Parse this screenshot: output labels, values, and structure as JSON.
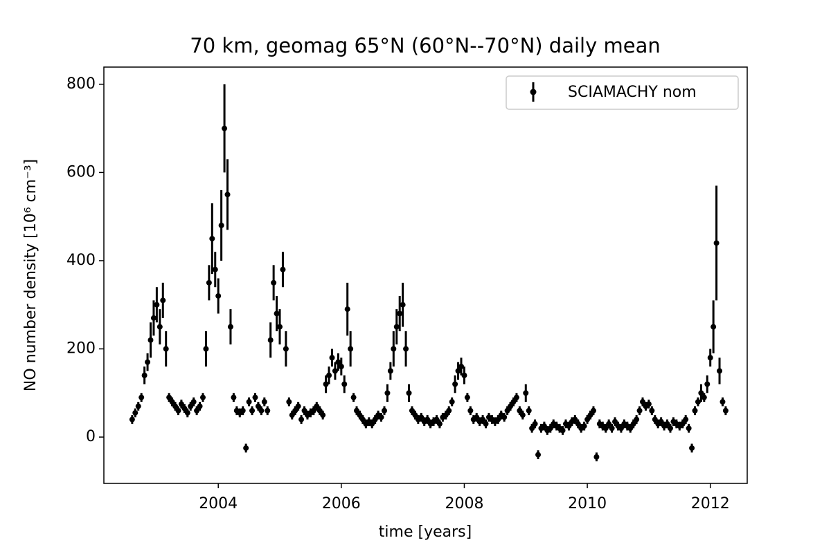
{
  "chart_data": {
    "type": "scatter",
    "title": "70 km, geomag 65°N (60°N--70°N) daily mean",
    "xlabel": "time [years]",
    "ylabel": "NO number density [10⁶ cm⁻³]",
    "xlim": [
      2002.14,
      2012.6
    ],
    "ylim": [
      -105,
      839
    ],
    "xticks": [
      2004,
      2006,
      2008,
      2010,
      2012
    ],
    "yticks": [
      0,
      200,
      400,
      600,
      800
    ],
    "legend": "upper right",
    "x": [
      2002.6,
      2002.65,
      2002.7,
      2002.75,
      2002.8,
      2002.85,
      2002.9,
      2002.95,
      2003,
      2003.05,
      2003.1,
      2003.15,
      2003.2,
      2003.25,
      2003.3,
      2003.35,
      2003.4,
      2003.45,
      2003.5,
      2003.55,
      2003.6,
      2003.65,
      2003.7,
      2003.75,
      2003.8,
      2003.85,
      2003.9,
      2003.95,
      2004,
      2004.05,
      2004.1,
      2004.15,
      2004.2,
      2004.25,
      2004.3,
      2004.35,
      2004.4,
      2004.45,
      2004.5,
      2004.55,
      2004.6,
      2004.65,
      2004.7,
      2004.75,
      2004.8,
      2004.85,
      2004.9,
      2004.95,
      2005,
      2005.05,
      2005.1,
      2005.15,
      2005.2,
      2005.25,
      2005.3,
      2005.35,
      2005.4,
      2005.45,
      2005.5,
      2005.55,
      2005.6,
      2005.65,
      2005.7,
      2005.75,
      2005.8,
      2005.85,
      2005.9,
      2005.95,
      2006,
      2006.05,
      2006.1,
      2006.15,
      2006.2,
      2006.25,
      2006.3,
      2006.35,
      2006.4,
      2006.45,
      2006.5,
      2006.55,
      2006.6,
      2006.65,
      2006.7,
      2006.75,
      2006.8,
      2006.85,
      2006.9,
      2006.95,
      2007,
      2007.05,
      2007.1,
      2007.15,
      2007.2,
      2007.25,
      2007.3,
      2007.35,
      2007.4,
      2007.45,
      2007.5,
      2007.55,
      2007.6,
      2007.65,
      2007.7,
      2007.75,
      2007.8,
      2007.85,
      2007.9,
      2007.95,
      2008,
      2008.05,
      2008.1,
      2008.15,
      2008.2,
      2008.25,
      2008.3,
      2008.35,
      2008.4,
      2008.45,
      2008.5,
      2008.55,
      2008.6,
      2008.65,
      2008.7,
      2008.75,
      2008.8,
      2008.85,
      2008.9,
      2008.95,
      2009,
      2009.05,
      2009.1,
      2009.15,
      2009.2,
      2009.25,
      2009.3,
      2009.35,
      2009.4,
      2009.45,
      2009.5,
      2009.55,
      2009.6,
      2009.65,
      2009.7,
      2009.75,
      2009.8,
      2009.85,
      2009.9,
      2009.95,
      2010,
      2010.05,
      2010.1,
      2010.15,
      2010.2,
      2010.25,
      2010.3,
      2010.35,
      2010.4,
      2010.45,
      2010.5,
      2010.55,
      2010.6,
      2010.65,
      2010.7,
      2010.75,
      2010.8,
      2010.85,
      2010.9,
      2010.95,
      2011,
      2011.05,
      2011.1,
      2011.15,
      2011.2,
      2011.25,
      2011.3,
      2011.35,
      2011.4,
      2011.45,
      2011.5,
      2011.55,
      2011.6,
      2011.65,
      2011.7,
      2011.75,
      2011.8,
      2011.85,
      2011.9,
      2011.95,
      2012,
      2012.05,
      2012.1,
      2012.15,
      2012.2,
      2012.25
    ],
    "series": [
      {
        "name": "SCIAMACHY nom",
        "color": "#000000",
        "values": [
          40,
          55,
          70,
          90,
          140,
          170,
          220,
          270,
          300,
          250,
          310,
          200,
          90,
          80,
          70,
          60,
          75,
          65,
          55,
          70,
          80,
          60,
          70,
          90,
          200,
          350,
          450,
          380,
          320,
          480,
          700,
          550,
          250,
          90,
          60,
          55,
          60,
          -25,
          80,
          60,
          90,
          70,
          60,
          80,
          60,
          220,
          350,
          280,
          250,
          380,
          200,
          80,
          50,
          60,
          70,
          40,
          60,
          50,
          55,
          60,
          70,
          60,
          50,
          120,
          140,
          180,
          150,
          170,
          160,
          120,
          290,
          200,
          90,
          60,
          50,
          40,
          30,
          35,
          30,
          40,
          50,
          45,
          60,
          100,
          150,
          200,
          250,
          280,
          300,
          200,
          100,
          60,
          50,
          40,
          45,
          35,
          40,
          30,
          35,
          40,
          30,
          45,
          50,
          60,
          80,
          120,
          150,
          160,
          140,
          90,
          60,
          40,
          45,
          35,
          40,
          30,
          45,
          40,
          35,
          40,
          50,
          45,
          60,
          70,
          80,
          90,
          60,
          50,
          100,
          60,
          20,
          30,
          -40,
          20,
          25,
          15,
          20,
          30,
          25,
          20,
          15,
          30,
          25,
          35,
          40,
          30,
          20,
          25,
          40,
          50,
          60,
          -45,
          30,
          25,
          20,
          30,
          20,
          35,
          25,
          20,
          30,
          25,
          20,
          30,
          40,
          60,
          80,
          70,
          75,
          60,
          40,
          30,
          35,
          25,
          30,
          20,
          35,
          30,
          25,
          30,
          40,
          20,
          -25,
          60,
          80,
          100,
          90,
          120,
          180,
          250,
          440,
          150,
          80,
          60
        ],
        "errors": [
          10,
          10,
          10,
          10,
          20,
          20,
          40,
          40,
          40,
          40,
          40,
          40,
          10,
          10,
          10,
          10,
          10,
          10,
          10,
          10,
          10,
          10,
          10,
          10,
          40,
          40,
          80,
          40,
          40,
          80,
          100,
          80,
          40,
          10,
          10,
          10,
          10,
          10,
          10,
          10,
          10,
          10,
          10,
          10,
          10,
          40,
          40,
          40,
          40,
          40,
          40,
          10,
          10,
          10,
          10,
          10,
          10,
          10,
          10,
          10,
          10,
          10,
          10,
          20,
          20,
          20,
          20,
          20,
          20,
          20,
          60,
          40,
          10,
          10,
          10,
          10,
          10,
          10,
          10,
          10,
          10,
          10,
          10,
          20,
          20,
          40,
          40,
          40,
          50,
          40,
          20,
          10,
          10,
          10,
          10,
          10,
          10,
          10,
          10,
          10,
          10,
          10,
          10,
          10,
          10,
          20,
          20,
          20,
          20,
          10,
          10,
          10,
          10,
          10,
          10,
          10,
          10,
          10,
          10,
          10,
          10,
          10,
          10,
          10,
          10,
          10,
          10,
          10,
          20,
          10,
          10,
          10,
          10,
          10,
          10,
          10,
          10,
          10,
          10,
          10,
          10,
          10,
          10,
          10,
          10,
          10,
          10,
          10,
          10,
          10,
          10,
          10,
          10,
          10,
          10,
          10,
          10,
          10,
          10,
          10,
          10,
          10,
          10,
          10,
          10,
          10,
          10,
          10,
          10,
          10,
          10,
          10,
          10,
          10,
          10,
          10,
          10,
          10,
          10,
          10,
          10,
          10,
          10,
          10,
          10,
          20,
          10,
          20,
          20,
          60,
          130,
          30,
          10,
          10
        ]
      }
    ]
  }
}
